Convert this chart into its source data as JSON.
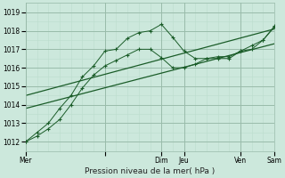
{
  "bg_color": "#cce8dc",
  "grid_color_major": "#99bbaa",
  "grid_color_minor": "#bbddcc",
  "line_color": "#1a5c28",
  "title": "Pression niveau de la mer( hPa )",
  "ylabel_ticks": [
    1012,
    1013,
    1014,
    1015,
    1016,
    1017,
    1018,
    1019
  ],
  "xlim": [
    0,
    22
  ],
  "ylim": [
    1011.5,
    1019.5
  ],
  "xtick_positions": [
    0,
    7,
    12,
    14,
    19,
    22
  ],
  "xtick_labels": [
    "Mer",
    "",
    "Dim",
    "Jeu",
    "Ven",
    "Sam"
  ],
  "vline_positions": [
    0,
    7,
    12,
    14,
    19,
    22
  ],
  "series1_x": [
    0,
    1,
    2,
    3,
    4,
    5,
    6,
    7,
    8,
    9,
    10,
    11,
    12,
    13,
    14,
    15,
    16,
    17,
    18,
    19,
    20,
    21,
    22
  ],
  "series1_y": [
    1012.0,
    1012.5,
    1013.0,
    1013.8,
    1014.5,
    1015.5,
    1016.1,
    1016.9,
    1017.0,
    1017.6,
    1017.9,
    1018.0,
    1018.35,
    1017.65,
    1016.9,
    1016.5,
    1016.5,
    1016.6,
    1016.6,
    1016.9,
    1017.0,
    1017.5,
    1018.25
  ],
  "series2_x": [
    0,
    1,
    2,
    3,
    4,
    5,
    6,
    7,
    8,
    9,
    10,
    11,
    12,
    13,
    14,
    15,
    16,
    17,
    18,
    19,
    20,
    21,
    22
  ],
  "series2_y": [
    1012.0,
    1012.3,
    1012.7,
    1013.2,
    1014.0,
    1014.9,
    1015.6,
    1016.1,
    1016.4,
    1016.7,
    1017.0,
    1017.0,
    1016.55,
    1016.0,
    1016.0,
    1016.2,
    1016.5,
    1016.5,
    1016.5,
    1016.9,
    1017.2,
    1017.5,
    1018.2
  ],
  "trend1_x": [
    0,
    22
  ],
  "trend1_y": [
    1013.8,
    1017.3
  ],
  "trend2_x": [
    0,
    22
  ],
  "trend2_y": [
    1014.5,
    1018.1
  ]
}
